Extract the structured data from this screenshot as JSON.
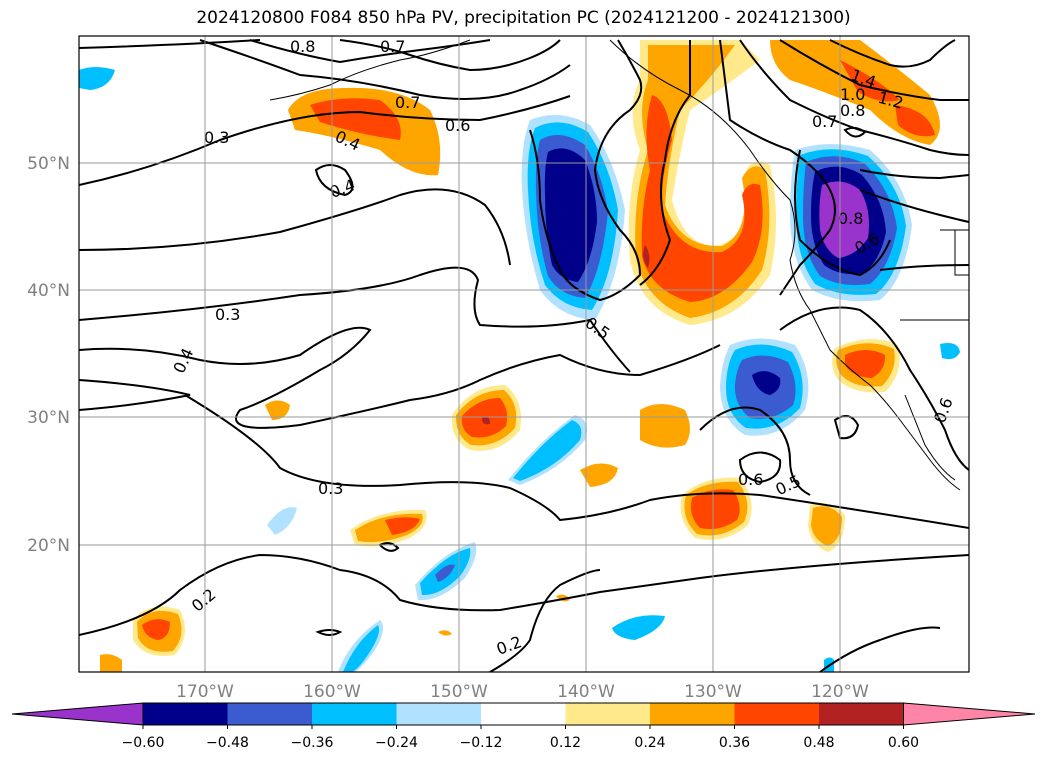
{
  "title": "2024120800 F084 850 hPa PV, precipitation PC (2024121200 - 2024121300)",
  "map": {
    "lon_ticks": [
      "170°W",
      "160°W",
      "150°W",
      "140°W",
      "130°W",
      "120°W"
    ],
    "lat_ticks": [
      "50°N",
      "40°N",
      "30°N",
      "20°N"
    ],
    "contour_labels": [
      "0.8",
      "0.7",
      "0.7",
      "0.3",
      "0.4",
      "0.6",
      "0.4",
      "1.4",
      "1.0",
      "1.2",
      "0.8",
      "0.7",
      "0.8",
      "0.6",
      "0.3",
      "0.5",
      "0.4",
      "0.3",
      "0.6",
      "0.5",
      "0.6",
      "0.2",
      "0.2"
    ]
  },
  "colorbar": {
    "colors": [
      "#9933cc",
      "#00008b",
      "#3b5bd1",
      "#00bfff",
      "#b0e2ff",
      "#ffffff",
      "#ffe98a",
      "#ffa500",
      "#ff4500",
      "#b22222",
      "#ff85a8"
    ],
    "tick_labels": [
      "−0.60",
      "−0.48",
      "−0.36",
      "−0.24",
      "−0.12",
      "0.12",
      "0.24",
      "0.36",
      "0.48",
      "0.60"
    ]
  },
  "chart_data": {
    "type": "heatmap",
    "title": "2024120800 F084 850 hPa PV, precipitation PC (2024121200 - 2024121300)",
    "x_ticks": [
      "170°W",
      "160°W",
      "150°W",
      "140°W",
      "130°W",
      "120°W"
    ],
    "y_ticks": [
      "50°N",
      "40°N",
      "30°N",
      "20°N"
    ],
    "color_levels": [
      -0.6,
      -0.48,
      -0.36,
      -0.24,
      -0.12,
      0.12,
      0.24,
      0.36,
      0.48,
      0.6
    ],
    "contour_levels": [
      0.2,
      0.3,
      0.4,
      0.5,
      0.6,
      0.7,
      0.8,
      1.0,
      1.2,
      1.4
    ],
    "grid": true
  }
}
